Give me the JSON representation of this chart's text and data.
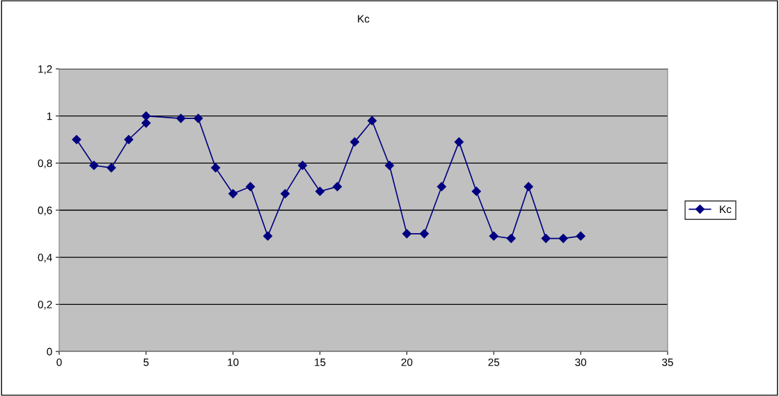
{
  "chart_data": {
    "type": "line",
    "title": "Kc",
    "x": [
      1,
      2,
      3,
      4,
      5,
      5,
      7,
      8,
      9,
      10,
      11,
      12,
      13,
      14,
      15,
      16,
      17,
      18,
      19,
      20,
      21,
      22,
      23,
      24,
      25,
      26,
      27,
      28,
      29,
      30
    ],
    "series": [
      {
        "name": "Kc",
        "color": "#000080",
        "values": [
          0.9,
          0.79,
          0.78,
          0.9,
          0.97,
          1.0,
          0.99,
          0.99,
          0.78,
          0.67,
          0.7,
          0.49,
          0.67,
          0.79,
          0.68,
          0.7,
          0.89,
          0.98,
          0.79,
          0.5,
          0.5,
          0.7,
          0.89,
          0.68,
          0.49,
          0.48,
          0.7,
          0.48,
          0.48,
          0.49
        ]
      }
    ],
    "xlim": [
      0,
      35
    ],
    "xticks": [
      0,
      5,
      10,
      15,
      20,
      25,
      30,
      35
    ],
    "ylim": [
      0,
      1.2
    ],
    "yticks": [
      {
        "value": 0,
        "label": "0"
      },
      {
        "value": 0.2,
        "label": "0,2"
      },
      {
        "value": 0.4,
        "label": "0,4"
      },
      {
        "value": 0.6,
        "label": "0,6"
      },
      {
        "value": 0.8,
        "label": "0,8"
      },
      {
        "value": 1,
        "label": "1"
      },
      {
        "value": 1.2,
        "label": "1,2"
      }
    ],
    "grid": "y",
    "legend": "right",
    "marker": "diamond",
    "line_style": "solid"
  }
}
